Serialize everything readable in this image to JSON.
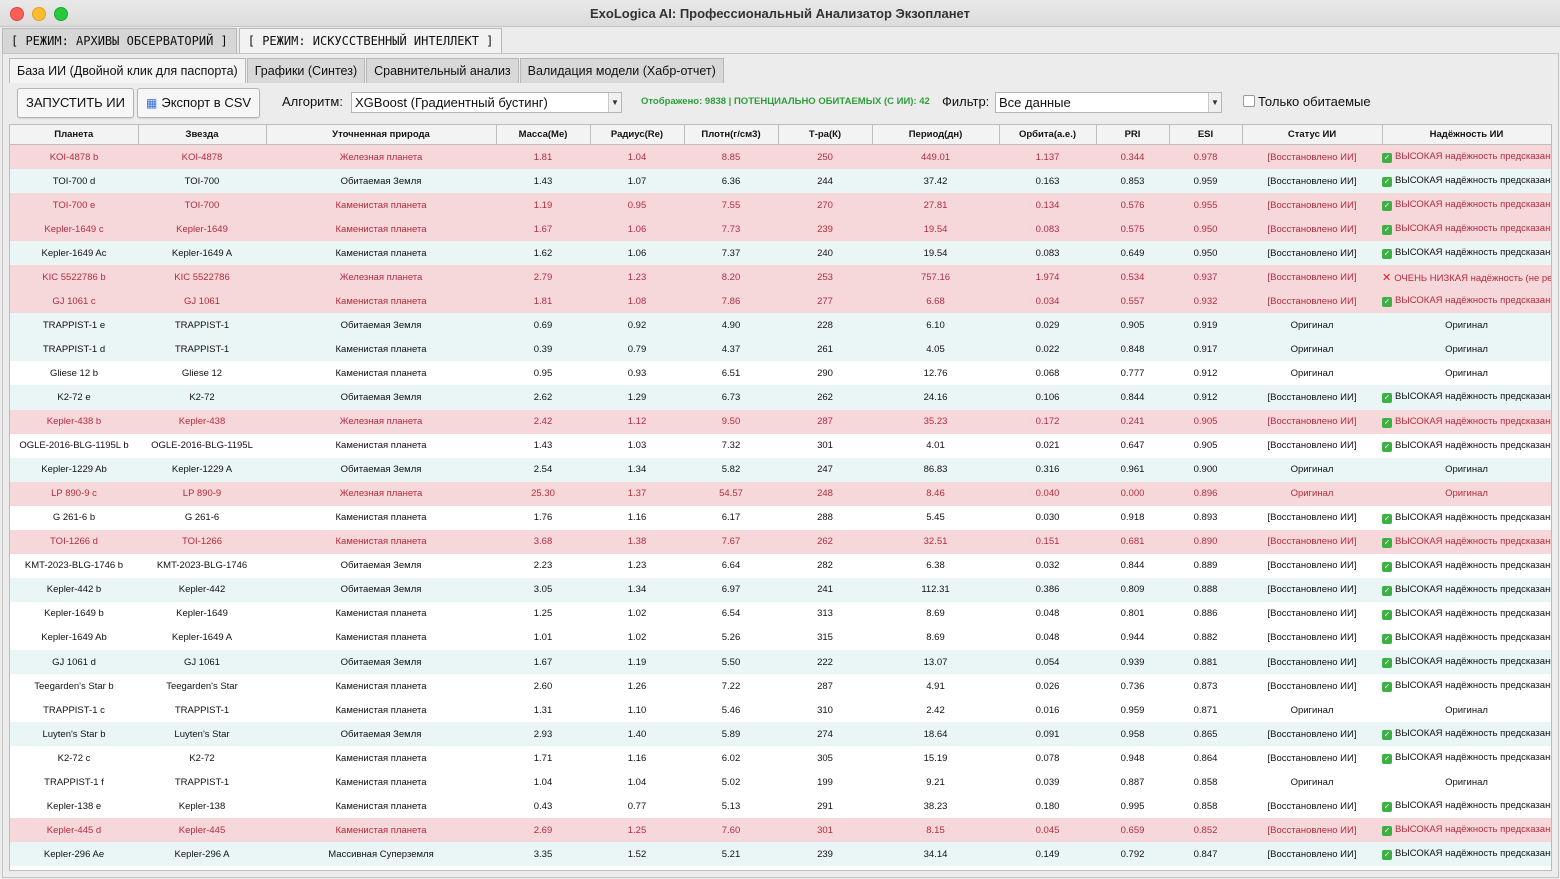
{
  "window": {
    "title": "ExoLogica AI: Профессиональный Анализатор Экзопланет"
  },
  "mode_tabs": [
    {
      "label": "[ РЕЖИМ: АРХИВЫ ОБСЕРВАТОРИЙ ]",
      "active": false
    },
    {
      "label": "[ РЕЖИМ: ИСКУССТВЕННЫЙ ИНТЕЛЛЕКТ ]",
      "active": true
    }
  ],
  "sub_tabs": [
    {
      "label": "База ИИ (Двойной клик для паспорта)",
      "active": true
    },
    {
      "label": "Графики (Синтез)",
      "active": false
    },
    {
      "label": "Сравнительный анализ",
      "active": false
    },
    {
      "label": "Валидация модели (Хабр-отчет)",
      "active": false
    }
  ],
  "toolbar": {
    "run_label": "ЗАПУСТИТЬ ИИ",
    "export_label": "Экспорт в CSV",
    "algorithm_label": "Алгоритм:",
    "algorithm_value": "XGBoost (Градиентный бустинг)",
    "status_text": "Отображено: 9838 | ПОТЕНЦИАЛЬНО ОБИТАЕМЫХ (С ИИ): 42",
    "filter_label": "Фильтр:",
    "filter_value": "Все данные",
    "habitable_only_label": "Только обитаемые",
    "status_color": "#2e9e3a"
  },
  "table": {
    "headers": [
      "Планета",
      "Звезда",
      "Уточненная природа",
      "Масса(Me)",
      "Радиус(Re)",
      "Плотн(г/см3)",
      "Т-ра(К)",
      "Период(дн)",
      "Орбита(а.е.)",
      "PRI",
      "ESI",
      "Статус ИИ",
      "Надёжность ИИ"
    ],
    "colors": {
      "red_row": "#f6d7da",
      "red_text": "#b32d3e",
      "cyan_row": "#eaf6f5",
      "white_row": "#ffffff"
    },
    "rows": [
      {
        "style": "red",
        "cells": [
          "KOI-4878 b",
          "KOI-4878",
          "Железная планета",
          "1.81",
          "1.04",
          "8.85",
          "250",
          "449.01",
          "1.137",
          "0.344",
          "0.978",
          "[Восстановлено ИИ]",
          "ВЫСОКАЯ надёжность предсказания"
        ],
        "rel": "ok"
      },
      {
        "style": "cyan",
        "cells": [
          "TOI-700 d",
          "TOI-700",
          "Обитаемая Земля",
          "1.43",
          "1.07",
          "6.36",
          "244",
          "37.42",
          "0.163",
          "0.853",
          "0.959",
          "[Восстановлено ИИ]",
          "ВЫСОКАЯ надёжность предсказания"
        ],
        "rel": "ok"
      },
      {
        "style": "red",
        "cells": [
          "TOI-700 e",
          "TOI-700",
          "Каменистая планета",
          "1.19",
          "0.95",
          "7.55",
          "270",
          "27.81",
          "0.134",
          "0.576",
          "0.955",
          "[Восстановлено ИИ]",
          "ВЫСОКАЯ надёжность предсказания"
        ],
        "rel": "ok"
      },
      {
        "style": "red",
        "cells": [
          "Kepler-1649 c",
          "Kepler-1649",
          "Каменистая планета",
          "1.67",
          "1.06",
          "7.73",
          "239",
          "19.54",
          "0.083",
          "0.575",
          "0.950",
          "[Восстановлено ИИ]",
          "ВЫСОКАЯ надёжность предсказания"
        ],
        "rel": "ok"
      },
      {
        "style": "cyan",
        "cells": [
          "Kepler-1649 Ac",
          "Kepler-1649 A",
          "Каменистая планета",
          "1.62",
          "1.06",
          "7.37",
          "240",
          "19.54",
          "0.083",
          "0.649",
          "0.950",
          "[Восстановлено ИИ]",
          "ВЫСОКАЯ надёжность предсказания"
        ],
        "rel": "ok"
      },
      {
        "style": "red",
        "cells": [
          "KIC 5522786 b",
          "KIC 5522786",
          "Железная планета",
          "2.79",
          "1.23",
          "8.20",
          "253",
          "757.16",
          "1.974",
          "0.534",
          "0.937",
          "[Восстановлено ИИ]",
          "ОЧЕНЬ НИЗКАЯ надёжность (не рекомен"
        ],
        "rel": "bad"
      },
      {
        "style": "red",
        "cells": [
          "GJ 1061 c",
          "GJ 1061",
          "Каменистая планета",
          "1.81",
          "1.08",
          "7.86",
          "277",
          "6.68",
          "0.034",
          "0.557",
          "0.932",
          "[Восстановлено ИИ]",
          "ВЫСОКАЯ надёжность предсказания"
        ],
        "rel": "ok"
      },
      {
        "style": "cyan",
        "cells": [
          "TRAPPIST-1 e",
          "TRAPPIST-1",
          "Обитаемая Земля",
          "0.69",
          "0.92",
          "4.90",
          "228",
          "6.10",
          "0.029",
          "0.905",
          "0.919",
          "Оригинал",
          "Оригинал"
        ],
        "rel": "none"
      },
      {
        "style": "cyan",
        "cells": [
          "TRAPPIST-1 d",
          "TRAPPIST-1",
          "Каменистая планета",
          "0.39",
          "0.79",
          "4.37",
          "261",
          "4.05",
          "0.022",
          "0.848",
          "0.917",
          "Оригинал",
          "Оригинал"
        ],
        "rel": "none"
      },
      {
        "style": "white",
        "cells": [
          "Gliese 12 b",
          "Gliese 12",
          "Каменистая планета",
          "0.95",
          "0.93",
          "6.51",
          "290",
          "12.76",
          "0.068",
          "0.777",
          "0.912",
          "Оригинал",
          "Оригинал"
        ],
        "rel": "none"
      },
      {
        "style": "cyan",
        "cells": [
          "K2-72 e",
          "K2-72",
          "Обитаемая Земля",
          "2.62",
          "1.29",
          "6.73",
          "262",
          "24.16",
          "0.106",
          "0.844",
          "0.912",
          "[Восстановлено ИИ]",
          "ВЫСОКАЯ надёжность предсказания"
        ],
        "rel": "ok"
      },
      {
        "style": "red",
        "cells": [
          "Kepler-438 b",
          "Kepler-438",
          "Железная планета",
          "2.42",
          "1.12",
          "9.50",
          "287",
          "35.23",
          "0.172",
          "0.241",
          "0.905",
          "[Восстановлено ИИ]",
          "ВЫСОКАЯ надёжность предсказания"
        ],
        "rel": "ok"
      },
      {
        "style": "white",
        "cells": [
          "OGLE-2016-BLG-1195L b",
          "OGLE-2016-BLG-1195L",
          "Каменистая планета",
          "1.43",
          "1.03",
          "7.32",
          "301",
          "4.01",
          "0.021",
          "0.647",
          "0.905",
          "[Восстановлено ИИ]",
          "ВЫСОКАЯ надёжность предсказания"
        ],
        "rel": "ok"
      },
      {
        "style": "cyan",
        "cells": [
          "Kepler-1229 Ab",
          "Kepler-1229 A",
          "Обитаемая Земля",
          "2.54",
          "1.34",
          "5.82",
          "247",
          "86.83",
          "0.316",
          "0.961",
          "0.900",
          "Оригинал",
          "Оригинал"
        ],
        "rel": "none"
      },
      {
        "style": "red",
        "cells": [
          "LP 890-9 c",
          "LP 890-9",
          "Железная планета",
          "25.30",
          "1.37",
          "54.57",
          "248",
          "8.46",
          "0.040",
          "0.000",
          "0.896",
          "Оригинал",
          "Оригинал"
        ],
        "rel": "none"
      },
      {
        "style": "white",
        "cells": [
          "G 261-6 b",
          "G 261-6",
          "Каменистая планета",
          "1.76",
          "1.16",
          "6.17",
          "288",
          "5.45",
          "0.030",
          "0.918",
          "0.893",
          "[Восстановлено ИИ]",
          "ВЫСОКАЯ надёжность предсказания"
        ],
        "rel": "ok"
      },
      {
        "style": "red",
        "cells": [
          "TOI-1266 d",
          "TOI-1266",
          "Каменистая планета",
          "3.68",
          "1.38",
          "7.67",
          "262",
          "32.51",
          "0.151",
          "0.681",
          "0.890",
          "[Восстановлено ИИ]",
          "ВЫСОКАЯ надёжность предсказания"
        ],
        "rel": "ok"
      },
      {
        "style": "white",
        "cells": [
          "KMT-2023-BLG-1746 b",
          "KMT-2023-BLG-1746",
          "Обитаемая Земля",
          "2.23",
          "1.23",
          "6.64",
          "282",
          "6.38",
          "0.032",
          "0.844",
          "0.889",
          "[Восстановлено ИИ]",
          "ВЫСОКАЯ надёжность предсказания"
        ],
        "rel": "ok"
      },
      {
        "style": "cyan",
        "cells": [
          "Kepler-442 b",
          "Kepler-442",
          "Обитаемая Земля",
          "3.05",
          "1.34",
          "6.97",
          "241",
          "112.31",
          "0.386",
          "0.809",
          "0.888",
          "[Восстановлено ИИ]",
          "ВЫСОКАЯ надёжность предсказания"
        ],
        "rel": "ok"
      },
      {
        "style": "white",
        "cells": [
          "Kepler-1649 b",
          "Kepler-1649",
          "Каменистая планета",
          "1.25",
          "1.02",
          "6.54",
          "313",
          "8.69",
          "0.048",
          "0.801",
          "0.886",
          "[Восстановлено ИИ]",
          "ВЫСОКАЯ надёжность предсказания"
        ],
        "rel": "ok"
      },
      {
        "style": "white",
        "cells": [
          "Kepler-1649 Ab",
          "Kepler-1649 A",
          "Каменистая планета",
          "1.01",
          "1.02",
          "5.26",
          "315",
          "8.69",
          "0.048",
          "0.944",
          "0.882",
          "[Восстановлено ИИ]",
          "ВЫСОКАЯ надёжность предсказания"
        ],
        "rel": "ok"
      },
      {
        "style": "cyan",
        "cells": [
          "GJ 1061 d",
          "GJ 1061",
          "Обитаемая Земля",
          "1.67",
          "1.19",
          "5.50",
          "222",
          "13.07",
          "0.054",
          "0.939",
          "0.881",
          "[Восстановлено ИИ]",
          "ВЫСОКАЯ надёжность предсказания"
        ],
        "rel": "ok"
      },
      {
        "style": "white",
        "cells": [
          "Teegarden's Star b",
          "Teegarden's Star",
          "Каменистая планета",
          "2.60",
          "1.26",
          "7.22",
          "287",
          "4.91",
          "0.026",
          "0.736",
          "0.873",
          "[Восстановлено ИИ]",
          "ВЫСОКАЯ надёжность предсказания"
        ],
        "rel": "ok"
      },
      {
        "style": "white",
        "cells": [
          "TRAPPIST-1 c",
          "TRAPPIST-1",
          "Каменистая планета",
          "1.31",
          "1.10",
          "5.46",
          "310",
          "2.42",
          "0.016",
          "0.959",
          "0.871",
          "Оригинал",
          "Оригинал"
        ],
        "rel": "none"
      },
      {
        "style": "cyan",
        "cells": [
          "Luyten's Star b",
          "Luyten's Star",
          "Обитаемая Земля",
          "2.93",
          "1.40",
          "5.89",
          "274",
          "18.64",
          "0.091",
          "0.958",
          "0.865",
          "[Восстановлено ИИ]",
          "ВЫСОКАЯ надёжность предсказания"
        ],
        "rel": "ok"
      },
      {
        "style": "white",
        "cells": [
          "K2-72 c",
          "K2-72",
          "Каменистая планета",
          "1.71",
          "1.16",
          "6.02",
          "305",
          "15.19",
          "0.078",
          "0.948",
          "0.864",
          "[Восстановлено ИИ]",
          "ВЫСОКАЯ надёжность предсказания"
        ],
        "rel": "ok"
      },
      {
        "style": "white",
        "cells": [
          "TRAPPIST-1 f",
          "TRAPPIST-1",
          "Каменистая планета",
          "1.04",
          "1.04",
          "5.02",
          "199",
          "9.21",
          "0.039",
          "0.887",
          "0.858",
          "Оригинал",
          "Оригинал"
        ],
        "rel": "none"
      },
      {
        "style": "white",
        "cells": [
          "Kepler-138 e",
          "Kepler-138",
          "Каменистая планета",
          "0.43",
          "0.77",
          "5.13",
          "291",
          "38.23",
          "0.180",
          "0.995",
          "0.858",
          "[Восстановлено ИИ]",
          "ВЫСОКАЯ надёжность предсказания"
        ],
        "rel": "ok"
      },
      {
        "style": "red",
        "cells": [
          "Kepler-445 d",
          "Kepler-445",
          "Каменистая планета",
          "2.69",
          "1.25",
          "7.60",
          "301",
          "8.15",
          "0.045",
          "0.659",
          "0.852",
          "[Восстановлено ИИ]",
          "ВЫСОКАЯ надёжность предсказания"
        ],
        "rel": "ok"
      },
      {
        "style": "cyan",
        "cells": [
          "Kepler-296 Ae",
          "Kepler-296 A",
          "Массивная Суперземля",
          "3.35",
          "1.52",
          "5.21",
          "239",
          "34.14",
          "0.149",
          "0.792",
          "0.847",
          "[Восстановлено ИИ]",
          "ВЫСОКАЯ надёжность предсказания"
        ],
        "rel": "ok"
      }
    ]
  }
}
